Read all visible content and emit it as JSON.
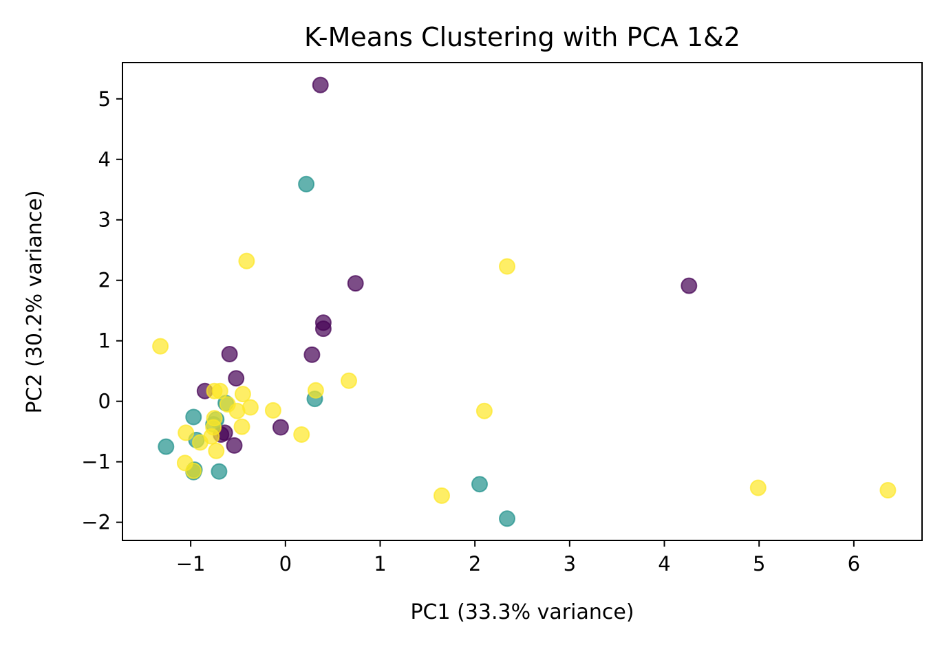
{
  "chart_data": {
    "type": "scatter",
    "title": "K-Means Clustering with PCA 1&2",
    "xlabel": "PC1 (33.3% variance)",
    "ylabel": "PC2 (30.2% variance)",
    "xlim": [
      -1.72,
      6.72
    ],
    "ylim": [
      -2.3,
      5.6
    ],
    "xticks": [
      -1,
      0,
      1,
      2,
      3,
      4,
      5,
      6
    ],
    "yticks": [
      -2,
      -1,
      0,
      1,
      2,
      3,
      4,
      5
    ],
    "grid": false,
    "legend": "none",
    "marker_alpha": 0.7,
    "series": [
      {
        "color": "#440154",
        "points": [
          [
            0.37,
            5.23
          ],
          [
            0.74,
            1.95
          ],
          [
            4.26,
            1.91
          ],
          [
            0.4,
            1.3
          ],
          [
            0.4,
            1.2
          ],
          [
            0.28,
            0.77
          ],
          [
            -0.59,
            0.78
          ],
          [
            -0.52,
            0.38
          ],
          [
            -0.85,
            0.17
          ],
          [
            -0.64,
            -0.52
          ],
          [
            -0.54,
            -0.73
          ],
          [
            -0.05,
            -0.43
          ],
          [
            -0.68,
            -0.55
          ]
        ]
      },
      {
        "color": "#21918c",
        "points": [
          [
            0.22,
            3.59
          ],
          [
            0.31,
            0.04
          ],
          [
            -0.63,
            -0.03
          ],
          [
            -0.73,
            -0.3
          ],
          [
            -0.97,
            -0.26
          ],
          [
            -0.94,
            -0.64
          ],
          [
            -1.26,
            -0.75
          ],
          [
            -0.96,
            -1.13
          ],
          [
            -0.97,
            -1.17
          ],
          [
            -0.7,
            -1.16
          ],
          [
            2.05,
            -1.37
          ],
          [
            2.34,
            -1.94
          ],
          [
            -0.76,
            -0.38
          ]
        ]
      },
      {
        "color": "#fde725",
        "points": [
          [
            -0.41,
            2.32
          ],
          [
            2.34,
            2.23
          ],
          [
            -1.32,
            0.91
          ],
          [
            0.67,
            0.34
          ],
          [
            0.32,
            0.18
          ],
          [
            -0.75,
            0.17
          ],
          [
            -0.69,
            0.17
          ],
          [
            -0.45,
            0.12
          ],
          [
            -0.61,
            -0.05
          ],
          [
            -0.51,
            -0.16
          ],
          [
            -0.37,
            -0.1
          ],
          [
            -0.13,
            -0.15
          ],
          [
            2.1,
            -0.16
          ],
          [
            0.17,
            -0.55
          ],
          [
            -0.46,
            -0.42
          ],
          [
            -0.75,
            -0.28
          ],
          [
            -0.78,
            -0.58
          ],
          [
            -1.05,
            -0.52
          ],
          [
            -0.9,
            -0.68
          ],
          [
            -0.73,
            -0.82
          ],
          [
            -1.06,
            -1.02
          ],
          [
            -0.97,
            -1.15
          ],
          [
            1.65,
            -1.56
          ],
          [
            4.99,
            -1.43
          ],
          [
            6.36,
            -1.47
          ],
          [
            -0.76,
            -0.43
          ]
        ]
      }
    ]
  }
}
